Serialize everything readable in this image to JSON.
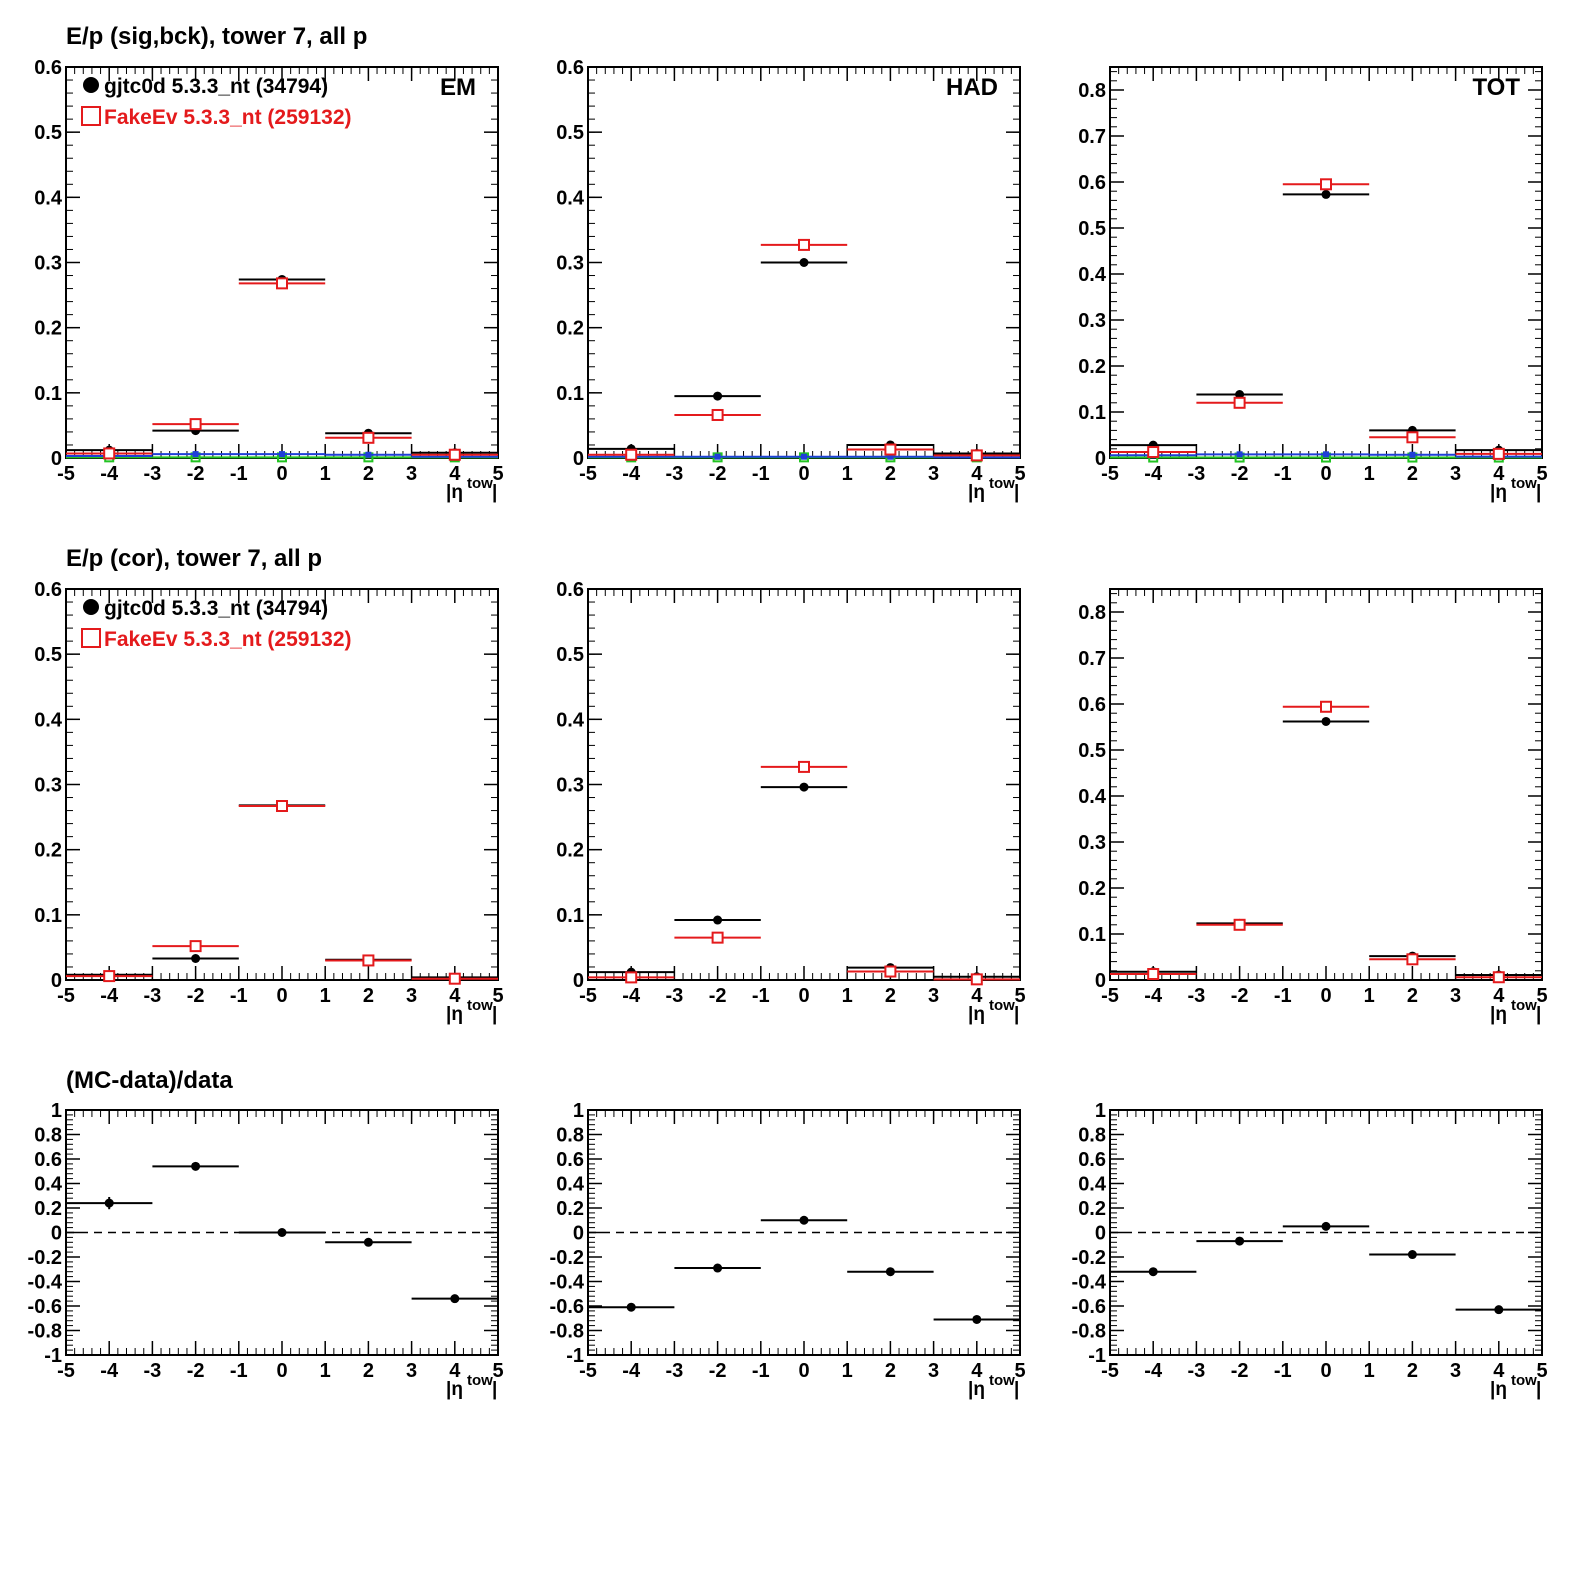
{
  "colors": {
    "data": "#000000",
    "mc": "#e41a1c",
    "blue": "#1f3fd8",
    "green": "#22c322"
  },
  "rows": [
    {
      "title": "E/p (sig,bck), tower 7, all p"
    },
    {
      "title": "E/p (cor), tower 7, all p"
    },
    {
      "title": "(MC-data)/data"
    }
  ],
  "legend": [
    {
      "label": "gjtc0d 5.3.3_nt (34794)",
      "marker": "filled-circle",
      "color": "#000000"
    },
    {
      "label": "FakeEv 5.3.3_nt (259132)",
      "marker": "open-square",
      "color": "#e41a1c"
    }
  ],
  "xaxis": {
    "label_main": "|η",
    "label_sup": "tow",
    "label_end": "|"
  },
  "chart_data": [
    {
      "type": "scatter",
      "panel": "row1-col1",
      "corner_label": "EM",
      "xlim": [
        -5,
        5
      ],
      "ylim": [
        0,
        0.6
      ],
      "xticks": [
        -5,
        -4,
        -3,
        -2,
        -1,
        0,
        1,
        2,
        3,
        4,
        5
      ],
      "yticks": [
        0,
        0.1,
        0.2,
        0.3,
        0.4,
        0.5,
        0.6
      ],
      "ytick_labels": [
        "0",
        "0.1",
        "0.2",
        "0.3",
        "0.4",
        "0.5",
        "0.6"
      ],
      "series": [
        {
          "role": "data",
          "x": [
            -4,
            -2,
            0,
            2,
            4
          ],
          "xerr": 1,
          "y": [
            0.012,
            0.042,
            0.274,
            0.038,
            0.008
          ]
        },
        {
          "role": "mc",
          "x": [
            -4,
            -2,
            0,
            2,
            4
          ],
          "xerr": 1,
          "y": [
            0.007,
            0.052,
            0.268,
            0.031,
            0.005
          ]
        },
        {
          "role": "blue",
          "x": [
            -4,
            -2,
            0,
            2,
            4
          ],
          "xerr": 1,
          "y": [
            0.003,
            0.006,
            0.006,
            0.005,
            0.002
          ]
        },
        {
          "role": "green",
          "x": [
            -4,
            -2,
            0,
            2,
            4
          ],
          "xerr": 1,
          "y": [
            0.001,
            0.001,
            0.001,
            0.001,
            0.001
          ]
        }
      ]
    },
    {
      "type": "scatter",
      "panel": "row1-col2",
      "corner_label": "HAD",
      "xlim": [
        -5,
        5
      ],
      "ylim": [
        0,
        0.6
      ],
      "xticks": [
        -5,
        -4,
        -3,
        -2,
        -1,
        0,
        1,
        2,
        3,
        4,
        5
      ],
      "yticks": [
        0,
        0.1,
        0.2,
        0.3,
        0.4,
        0.5,
        0.6
      ],
      "ytick_labels": [
        "0",
        "0.1",
        "0.2",
        "0.3",
        "0.4",
        "0.5",
        "0.6"
      ],
      "series": [
        {
          "role": "data",
          "x": [
            -4,
            -2,
            0,
            2,
            4
          ],
          "xerr": 1,
          "y": [
            0.014,
            0.095,
            0.3,
            0.02,
            0.007
          ]
        },
        {
          "role": "mc",
          "x": [
            -4,
            -2,
            0,
            2,
            4
          ],
          "xerr": 1,
          "y": [
            0.005,
            0.066,
            0.327,
            0.013,
            0.004
          ]
        },
        {
          "role": "blue",
          "x": [
            -4,
            -2,
            0,
            2,
            4
          ],
          "xerr": 1,
          "y": [
            0.002,
            0.002,
            0.002,
            0.002,
            0.001
          ]
        },
        {
          "role": "green",
          "x": [
            -4,
            -2,
            0,
            2,
            4
          ],
          "xerr": 1,
          "y": [
            0.001,
            0.001,
            0.001,
            0.001,
            0.001
          ]
        }
      ]
    },
    {
      "type": "scatter",
      "panel": "row1-col3",
      "corner_label": "TOT",
      "xlim": [
        -5,
        5
      ],
      "ylim": [
        0,
        0.85
      ],
      "xticks": [
        -5,
        -4,
        -3,
        -2,
        -1,
        0,
        1,
        2,
        3,
        4,
        5
      ],
      "yticks": [
        0,
        0.1,
        0.2,
        0.3,
        0.4,
        0.5,
        0.6,
        0.7,
        0.8
      ],
      "ytick_labels": [
        "0",
        "0.1",
        "0.2",
        "0.3",
        "0.4",
        "0.5",
        "0.6",
        "0.7",
        "0.8"
      ],
      "series": [
        {
          "role": "data",
          "x": [
            -4,
            -2,
            0,
            2,
            4
          ],
          "xerr": 1,
          "y": [
            0.028,
            0.138,
            0.573,
            0.06,
            0.017
          ]
        },
        {
          "role": "mc",
          "x": [
            -4,
            -2,
            0,
            2,
            4
          ],
          "xerr": 1,
          "y": [
            0.013,
            0.12,
            0.595,
            0.045,
            0.009
          ]
        },
        {
          "role": "blue",
          "x": [
            -4,
            -2,
            0,
            2,
            4
          ],
          "xerr": 1,
          "y": [
            0.006,
            0.008,
            0.008,
            0.007,
            0.003
          ]
        },
        {
          "role": "green",
          "x": [
            -4,
            -2,
            0,
            2,
            4
          ],
          "xerr": 1,
          "y": [
            0.001,
            0.001,
            0.001,
            0.001,
            0.001
          ]
        }
      ]
    },
    {
      "type": "scatter",
      "panel": "row2-col1",
      "corner_label": "",
      "xlim": [
        -5,
        5
      ],
      "ylim": [
        0,
        0.6
      ],
      "xticks": [
        -5,
        -4,
        -3,
        -2,
        -1,
        0,
        1,
        2,
        3,
        4,
        5
      ],
      "yticks": [
        0,
        0.1,
        0.2,
        0.3,
        0.4,
        0.5,
        0.6
      ],
      "ytick_labels": [
        "0",
        "0.1",
        "0.2",
        "0.3",
        "0.4",
        "0.5",
        "0.6"
      ],
      "series": [
        {
          "role": "data",
          "x": [
            -4,
            -2,
            0,
            2,
            4
          ],
          "xerr": 1,
          "y": [
            0.008,
            0.033,
            0.268,
            0.031,
            0.004
          ]
        },
        {
          "role": "mc",
          "x": [
            -4,
            -2,
            0,
            2,
            4
          ],
          "xerr": 1,
          "y": [
            0.006,
            0.052,
            0.267,
            0.03,
            0.002
          ]
        }
      ]
    },
    {
      "type": "scatter",
      "panel": "row2-col2",
      "corner_label": "",
      "xlim": [
        -5,
        5
      ],
      "ylim": [
        0,
        0.6
      ],
      "xticks": [
        -5,
        -4,
        -3,
        -2,
        -1,
        0,
        1,
        2,
        3,
        4,
        5
      ],
      "yticks": [
        0,
        0.1,
        0.2,
        0.3,
        0.4,
        0.5,
        0.6
      ],
      "ytick_labels": [
        "0",
        "0.1",
        "0.2",
        "0.3",
        "0.4",
        "0.5",
        "0.6"
      ],
      "series": [
        {
          "role": "data",
          "x": [
            -4,
            -2,
            0,
            2,
            4
          ],
          "xerr": 1,
          "y": [
            0.012,
            0.092,
            0.296,
            0.019,
            0.005
          ]
        },
        {
          "role": "mc",
          "x": [
            -4,
            -2,
            0,
            2,
            4
          ],
          "xerr": 1,
          "y": [
            0.004,
            0.065,
            0.327,
            0.013,
            0.001
          ]
        }
      ]
    },
    {
      "type": "scatter",
      "panel": "row2-col3",
      "corner_label": "",
      "xlim": [
        -5,
        5
      ],
      "ylim": [
        0,
        0.85
      ],
      "xticks": [
        -5,
        -4,
        -3,
        -2,
        -1,
        0,
        1,
        2,
        3,
        4,
        5
      ],
      "yticks": [
        0,
        0.1,
        0.2,
        0.3,
        0.4,
        0.5,
        0.6,
        0.7,
        0.8
      ],
      "ytick_labels": [
        "0",
        "0.1",
        "0.2",
        "0.3",
        "0.4",
        "0.5",
        "0.6",
        "0.7",
        "0.8"
      ],
      "series": [
        {
          "role": "data",
          "x": [
            -4,
            -2,
            0,
            2,
            4
          ],
          "xerr": 1,
          "y": [
            0.018,
            0.123,
            0.562,
            0.052,
            0.011
          ]
        },
        {
          "role": "mc",
          "x": [
            -4,
            -2,
            0,
            2,
            4
          ],
          "xerr": 1,
          "y": [
            0.013,
            0.12,
            0.594,
            0.045,
            0.006
          ]
        }
      ]
    },
    {
      "type": "scatter",
      "panel": "row3-col1",
      "corner_label": "",
      "xlim": [
        -5,
        5
      ],
      "ylim": [
        -1,
        1
      ],
      "dashed_zero": true,
      "xticks": [
        -5,
        -4,
        -3,
        -2,
        -1,
        0,
        1,
        2,
        3,
        4,
        5
      ],
      "yticks": [
        -1,
        -0.8,
        -0.6,
        -0.4,
        -0.2,
        0,
        0.2,
        0.4,
        0.6,
        0.8,
        1
      ],
      "ytick_labels": [
        "-1",
        "-0.8",
        "-0.6",
        "-0.4",
        "-0.2",
        "0",
        "0.2",
        "0.4",
        "0.6",
        "0.8",
        "1"
      ],
      "series": [
        {
          "role": "data",
          "x": [
            -4,
            -2,
            0,
            2,
            4
          ],
          "xerr": 1,
          "y": [
            0.24,
            0.54,
            0.0,
            -0.08,
            -0.54
          ],
          "yerr": [
            0.05,
            0.01,
            0.005,
            0.01,
            0.01
          ]
        }
      ]
    },
    {
      "type": "scatter",
      "panel": "row3-col2",
      "corner_label": "",
      "xlim": [
        -5,
        5
      ],
      "ylim": [
        -1,
        1
      ],
      "dashed_zero": true,
      "xticks": [
        -5,
        -4,
        -3,
        -2,
        -1,
        0,
        1,
        2,
        3,
        4,
        5
      ],
      "yticks": [
        -1,
        -0.8,
        -0.6,
        -0.4,
        -0.2,
        0,
        0.2,
        0.4,
        0.6,
        0.8,
        1
      ],
      "ytick_labels": [
        "-1",
        "-0.8",
        "-0.6",
        "-0.4",
        "-0.2",
        "0",
        "0.2",
        "0.4",
        "0.6",
        "0.8",
        "1"
      ],
      "series": [
        {
          "role": "data",
          "x": [
            -4,
            -2,
            0,
            2,
            4
          ],
          "xerr": 1,
          "y": [
            -0.61,
            -0.29,
            0.1,
            -0.32,
            -0.71
          ],
          "yerr": [
            0.01,
            0.01,
            0.01,
            0.01,
            0.01
          ]
        }
      ]
    },
    {
      "type": "scatter",
      "panel": "row3-col3",
      "corner_label": "",
      "xlim": [
        -5,
        5
      ],
      "ylim": [
        -1,
        1
      ],
      "dashed_zero": true,
      "xticks": [
        -5,
        -4,
        -3,
        -2,
        -1,
        0,
        1,
        2,
        3,
        4,
        5
      ],
      "yticks": [
        -1,
        -0.8,
        -0.6,
        -0.4,
        -0.2,
        0,
        0.2,
        0.4,
        0.6,
        0.8,
        1
      ],
      "ytick_labels": [
        "-1",
        "-0.8",
        "-0.6",
        "-0.4",
        "-0.2",
        "0",
        "0.2",
        "0.4",
        "0.6",
        "0.8",
        "1"
      ],
      "series": [
        {
          "role": "data",
          "x": [
            -4,
            -2,
            0,
            2,
            4
          ],
          "xerr": 1,
          "y": [
            -0.32,
            -0.07,
            0.05,
            -0.18,
            -0.63
          ],
          "yerr": [
            0.01,
            0.01,
            0.01,
            0.01,
            0.01
          ]
        }
      ]
    }
  ]
}
